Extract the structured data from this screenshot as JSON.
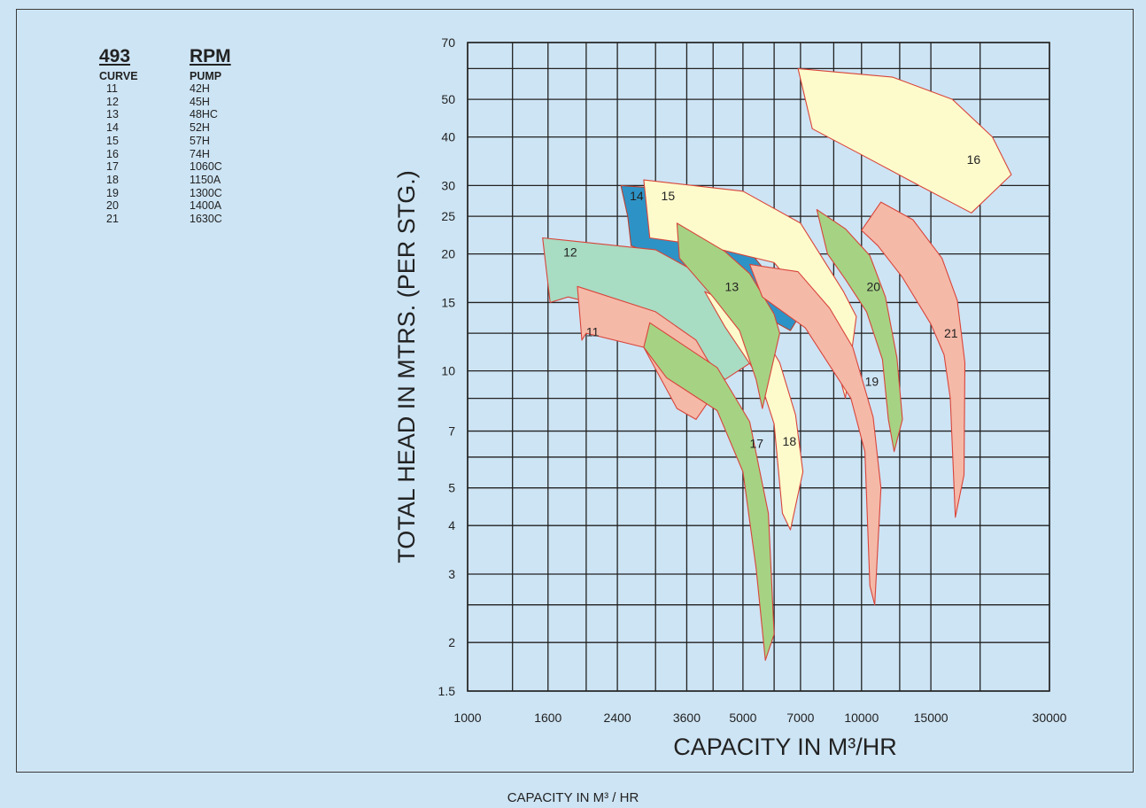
{
  "legend": {
    "rpm_value": "493",
    "rpm_label": "RPM",
    "col_curve": "CURVE",
    "col_pump": "PUMP",
    "rows": [
      {
        "curve": "11",
        "pump": "42H"
      },
      {
        "curve": "12",
        "pump": "45H"
      },
      {
        "curve": "13",
        "pump": "48HC"
      },
      {
        "curve": "14",
        "pump": "52H"
      },
      {
        "curve": "15",
        "pump": "57H"
      },
      {
        "curve": "16",
        "pump": "74H"
      },
      {
        "curve": "17",
        "pump": "1060C"
      },
      {
        "curve": "18",
        "pump": "1150A"
      },
      {
        "curve": "19",
        "pump": "1300C"
      },
      {
        "curve": "20",
        "pump": "1400A"
      },
      {
        "curve": "21",
        "pump": "1630C"
      }
    ]
  },
  "caption_bottom": "CAPACITY IN M³ / HR",
  "colors": {
    "background": "#cde4f4",
    "grid": "#222222",
    "salmon": "#f5b9a8",
    "salmon_edge": "#d9443a",
    "green": "#a6d284",
    "mint": "#a8dcc3",
    "cream": "#fdfbcc",
    "blue": "#2d93c6"
  },
  "chart_data": {
    "type": "area",
    "title": "",
    "xlabel": "CAPACITY IN M³/HR",
    "ylabel": "TOTAL HEAD IN MTRS. (PER STG.)",
    "x_scale": "log",
    "y_scale": "log",
    "xlim": [
      1000,
      30000
    ],
    "ylim": [
      1.5,
      70
    ],
    "x_ticks": [
      1000,
      1600,
      2400,
      3600,
      5000,
      7000,
      10000,
      15000,
      30000
    ],
    "x_tick_labels": [
      "1000",
      "1600",
      "2400",
      "3600",
      "5000",
      "7000",
      "10000",
      "15000",
      "30000"
    ],
    "y_ticks": [
      1.5,
      2,
      3,
      4,
      5,
      7,
      10,
      15,
      20,
      25,
      30,
      40,
      50,
      70
    ],
    "y_tick_labels": [
      "1.5",
      "2",
      "3",
      "4",
      "5",
      "7",
      "10",
      "15",
      "20",
      "25",
      "30",
      "40",
      "50",
      "70"
    ],
    "regions": [
      {
        "name": "14",
        "color": "blue",
        "label_at": [
          2580,
          28.2
        ],
        "outline": [
          [
            2450,
            30
          ],
          [
            3900,
            29
          ],
          [
            7000,
            14
          ],
          [
            6600,
            12.7
          ],
          [
            3000,
            19.8
          ],
          [
            2600,
            21
          ],
          [
            2550,
            25
          ]
        ]
      },
      {
        "name": "16",
        "color": "cream",
        "label_at": [
          18500,
          35
        ],
        "outline": [
          [
            6900,
            60
          ],
          [
            12000,
            57
          ],
          [
            17000,
            50
          ],
          [
            21500,
            40
          ],
          [
            24000,
            32
          ],
          [
            19000,
            25.5
          ],
          [
            14000,
            30
          ],
          [
            10000,
            36
          ],
          [
            7500,
            42
          ]
        ]
      },
      {
        "name": "15",
        "color": "cream",
        "label_at": [
          3100,
          28.2
        ],
        "outline": [
          [
            2800,
            31
          ],
          [
            5000,
            29
          ],
          [
            7000,
            24
          ],
          [
            9000,
            16
          ],
          [
            9700,
            13.8
          ],
          [
            9100,
            8.5
          ],
          [
            8500,
            11
          ],
          [
            7500,
            14.5
          ],
          [
            6000,
            19
          ],
          [
            4000,
            21
          ],
          [
            2900,
            22
          ]
        ]
      },
      {
        "name": "12",
        "color": "mint",
        "label_at": [
          1750,
          20.2
        ],
        "outline": [
          [
            1550,
            22
          ],
          [
            3000,
            20.5
          ],
          [
            4200,
            17
          ],
          [
            5200,
            13
          ],
          [
            6000,
            11.5
          ],
          [
            4500,
            9.5
          ],
          [
            3800,
            11.5
          ],
          [
            2700,
            14
          ],
          [
            1800,
            15.5
          ],
          [
            1620,
            15
          ]
        ]
      },
      {
        "name": "11",
        "color": "salmon",
        "label_at": [
          2000,
          12.6
        ],
        "outline": [
          [
            1900,
            16.5
          ],
          [
            3000,
            14.2
          ],
          [
            3800,
            12
          ],
          [
            4400,
            9.3
          ],
          [
            3800,
            7.5
          ],
          [
            3400,
            8
          ],
          [
            2800,
            11.5
          ],
          [
            2000,
            12.5
          ],
          [
            1950,
            12
          ]
        ]
      },
      {
        "name": "18",
        "color": "cream",
        "label_at": [
          6300,
          6.6
        ],
        "outline": [
          [
            4000,
            16
          ],
          [
            5200,
            14.2
          ],
          [
            6200,
            10.5
          ],
          [
            6800,
            7.7
          ],
          [
            7100,
            5.5
          ],
          [
            6600,
            3.9
          ],
          [
            6300,
            4.3
          ],
          [
            6000,
            7.3
          ],
          [
            5500,
            9.6
          ],
          [
            4500,
            13
          ]
        ]
      },
      {
        "name": "13",
        "color": "green",
        "label_at": [
          4500,
          16.5
        ],
        "outline": [
          [
            3400,
            24
          ],
          [
            4500,
            20.3
          ],
          [
            5200,
            17.8
          ],
          [
            6000,
            14
          ],
          [
            6200,
            12.5
          ],
          [
            5600,
            8
          ],
          [
            5400,
            9.5
          ],
          [
            4900,
            12.7
          ],
          [
            4200,
            15.5
          ],
          [
            3450,
            19.5
          ]
        ]
      },
      {
        "name": "17",
        "color": "green",
        "label_at": [
          5200,
          6.5
        ],
        "outline": [
          [
            2900,
            13.3
          ],
          [
            4300,
            10.2
          ],
          [
            5200,
            7.4
          ],
          [
            5800,
            4.3
          ],
          [
            6000,
            2.1
          ],
          [
            5700,
            1.8
          ],
          [
            5400,
            3.1
          ],
          [
            5000,
            5.5
          ],
          [
            4300,
            7.9
          ],
          [
            3200,
            9.6
          ],
          [
            2800,
            11.5
          ]
        ]
      },
      {
        "name": "19",
        "color": "salmon",
        "label_at": [
          10200,
          9.4
        ],
        "outline": [
          [
            5200,
            18.8
          ],
          [
            6900,
            18
          ],
          [
            8300,
            14.5
          ],
          [
            9500,
            11.5
          ],
          [
            10700,
            7.6
          ],
          [
            11200,
            5
          ],
          [
            10800,
            2.5
          ],
          [
            10500,
            2.8
          ],
          [
            10200,
            6.2
          ],
          [
            9400,
            8.5
          ],
          [
            7200,
            12.9
          ],
          [
            5600,
            15.5
          ]
        ]
      },
      {
        "name": "20",
        "color": "green",
        "label_at": [
          10300,
          16.5
        ],
        "outline": [
          [
            7700,
            26
          ],
          [
            9100,
            23.2
          ],
          [
            10500,
            19.8
          ],
          [
            11500,
            15.5
          ],
          [
            12300,
            10.8
          ],
          [
            12700,
            7.5
          ],
          [
            12100,
            6.2
          ],
          [
            11700,
            7.5
          ],
          [
            11300,
            10.7
          ],
          [
            10300,
            14.2
          ],
          [
            9100,
            17.2
          ],
          [
            8200,
            20
          ]
        ]
      },
      {
        "name": "21",
        "color": "salmon",
        "label_at": [
          16200,
          12.5
        ],
        "outline": [
          [
            10000,
            23
          ],
          [
            11200,
            27.2
          ],
          [
            13500,
            24.5
          ],
          [
            16000,
            19.5
          ],
          [
            17500,
            15.2
          ],
          [
            18300,
            10.5
          ],
          [
            18200,
            5.4
          ],
          [
            17300,
            4.2
          ],
          [
            16800,
            8.5
          ],
          [
            16200,
            11
          ],
          [
            15000,
            13.2
          ],
          [
            12700,
            17.4
          ],
          [
            11000,
            21
          ]
        ]
      }
    ]
  }
}
